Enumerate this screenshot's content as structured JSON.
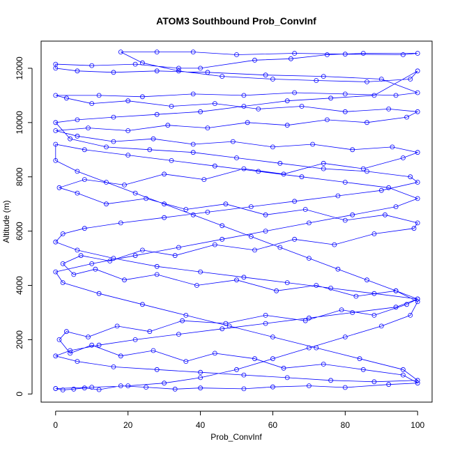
{
  "chart_data": {
    "type": "scatter",
    "title": "ATOM3 Southbound Prob_ConvInf",
    "xlabel": "Prob_ConvInf",
    "ylabel": "Altitude (m)",
    "xlim": [
      -4,
      104
    ],
    "ylim": [
      -300,
      13000
    ],
    "x_ticks": [
      0,
      20,
      40,
      60,
      80,
      100
    ],
    "y_ticks": [
      0,
      2000,
      4000,
      6000,
      8000,
      10000,
      12000
    ],
    "grid": false,
    "legend": "none",
    "series": [
      {
        "color": "#0000ff",
        "marker": "open-circle",
        "connected": true,
        "points": [
          [
            0,
            200
          ],
          [
            2,
            150
          ],
          [
            5,
            180
          ],
          [
            8,
            220
          ],
          [
            12,
            160
          ],
          [
            18,
            300
          ],
          [
            25,
            250
          ],
          [
            33,
            180
          ],
          [
            40,
            220
          ],
          [
            52,
            190
          ],
          [
            60,
            260
          ],
          [
            70,
            300
          ],
          [
            80,
            240
          ],
          [
            92,
            350
          ],
          [
            100,
            400
          ],
          [
            96,
            700
          ],
          [
            85,
            900
          ],
          [
            74,
            1100
          ],
          [
            63,
            950
          ],
          [
            55,
            1300
          ],
          [
            44,
            1500
          ],
          [
            36,
            1200
          ],
          [
            27,
            1600
          ],
          [
            18,
            1400
          ],
          [
            10,
            1800
          ],
          [
            4,
            1500
          ],
          [
            1,
            2000
          ],
          [
            3,
            2300
          ],
          [
            9,
            2100
          ],
          [
            17,
            2500
          ],
          [
            26,
            2300
          ],
          [
            35,
            2700
          ],
          [
            47,
            2600
          ],
          [
            58,
            2900
          ],
          [
            69,
            2700
          ],
          [
            79,
            3100
          ],
          [
            88,
            2900
          ],
          [
            97,
            3300
          ],
          [
            100,
            3500
          ],
          [
            94,
            3800
          ],
          [
            83,
            3600
          ],
          [
            72,
            4000
          ],
          [
            61,
            3800
          ],
          [
            50,
            4200
          ],
          [
            39,
            4000
          ],
          [
            28,
            4400
          ],
          [
            19,
            4200
          ],
          [
            11,
            4600
          ],
          [
            5,
            4400
          ],
          [
            2,
            4800
          ],
          [
            7,
            5100
          ],
          [
            15,
            4900
          ],
          [
            24,
            5300
          ],
          [
            33,
            5100
          ],
          [
            44,
            5500
          ],
          [
            55,
            5300
          ],
          [
            66,
            5700
          ],
          [
            77,
            5500
          ],
          [
            88,
            5900
          ],
          [
            99,
            6100
          ],
          [
            100,
            6300
          ],
          [
            91,
            6600
          ],
          [
            80,
            6400
          ],
          [
            69,
            6800
          ],
          [
            58,
            6600
          ],
          [
            47,
            7000
          ],
          [
            36,
            6800
          ],
          [
            25,
            7200
          ],
          [
            14,
            7000
          ],
          [
            6,
            7400
          ],
          [
            1,
            7600
          ],
          [
            8,
            7900
          ],
          [
            19,
            7700
          ],
          [
            30,
            8100
          ],
          [
            41,
            7900
          ],
          [
            52,
            8300
          ],
          [
            63,
            8100
          ],
          [
            74,
            8500
          ],
          [
            85,
            8300
          ],
          [
            96,
            8700
          ],
          [
            100,
            8900
          ],
          [
            93,
            9100
          ],
          [
            82,
            9000
          ],
          [
            71,
            9200
          ],
          [
            60,
            9100
          ],
          [
            49,
            9300
          ],
          [
            38,
            9200
          ],
          [
            27,
            9400
          ],
          [
            16,
            9300
          ],
          [
            6,
            9500
          ],
          [
            0,
            9700
          ],
          [
            9,
            9800
          ],
          [
            20,
            9700
          ],
          [
            31,
            9900
          ],
          [
            42,
            9800
          ],
          [
            53,
            10000
          ],
          [
            64,
            9900
          ],
          [
            75,
            10100
          ],
          [
            86,
            10000
          ],
          [
            97,
            10200
          ],
          [
            100,
            10400
          ],
          [
            92,
            10500
          ],
          [
            80,
            10400
          ],
          [
            68,
            10600
          ],
          [
            56,
            10500
          ],
          [
            44,
            10700
          ],
          [
            32,
            10600
          ],
          [
            20,
            10800
          ],
          [
            10,
            10700
          ],
          [
            3,
            10900
          ],
          [
            0,
            11000
          ],
          [
            12,
            11000
          ],
          [
            24,
            10950
          ],
          [
            38,
            11050
          ],
          [
            52,
            11000
          ],
          [
            66,
            11100
          ],
          [
            80,
            11050
          ],
          [
            94,
            11000
          ],
          [
            100,
            11100
          ],
          [
            90,
            11600
          ],
          [
            74,
            11700
          ],
          [
            58,
            11750
          ],
          [
            42,
            11850
          ],
          [
            28,
            11900
          ],
          [
            16,
            11850
          ],
          [
            6,
            11900
          ],
          [
            0,
            12000
          ],
          [
            0,
            12150
          ],
          [
            10,
            12100
          ],
          [
            22,
            12150
          ],
          [
            34,
            12000
          ],
          [
            40,
            12000
          ],
          [
            55,
            12300
          ],
          [
            65,
            12350
          ],
          [
            75,
            12500
          ],
          [
            85,
            12550
          ],
          [
            100,
            12550
          ],
          [
            96,
            12500
          ],
          [
            80,
            12520
          ],
          [
            66,
            12550
          ],
          [
            50,
            12500
          ],
          [
            38,
            12600
          ],
          [
            28,
            12600
          ],
          [
            18,
            12600
          ],
          [
            24,
            12200
          ],
          [
            34,
            11900
          ],
          [
            46,
            11700
          ],
          [
            60,
            11600
          ],
          [
            72,
            11550
          ],
          [
            86,
            11500
          ],
          [
            98,
            11600
          ],
          [
            100,
            11900
          ],
          [
            88,
            11000
          ],
          [
            76,
            10900
          ],
          [
            64,
            10800
          ],
          [
            52,
            10600
          ],
          [
            40,
            10400
          ],
          [
            28,
            10300
          ],
          [
            16,
            10200
          ],
          [
            6,
            10100
          ],
          [
            0,
            10000
          ],
          [
            4,
            9400
          ],
          [
            14,
            9100
          ],
          [
            26,
            9000
          ],
          [
            38,
            8900
          ],
          [
            50,
            8700
          ],
          [
            62,
            8500
          ],
          [
            74,
            8300
          ],
          [
            86,
            8200
          ],
          [
            98,
            8000
          ],
          [
            100,
            7800
          ],
          [
            90,
            7500
          ],
          [
            78,
            7300
          ],
          [
            66,
            7100
          ],
          [
            54,
            6900
          ],
          [
            42,
            6700
          ],
          [
            30,
            6500
          ],
          [
            18,
            6300
          ],
          [
            8,
            6100
          ],
          [
            2,
            5900
          ],
          [
            0,
            5600
          ],
          [
            6,
            5300
          ],
          [
            16,
            5000
          ],
          [
            28,
            4700
          ],
          [
            40,
            4500
          ],
          [
            52,
            4300
          ],
          [
            64,
            4100
          ],
          [
            76,
            3900
          ],
          [
            88,
            3700
          ],
          [
            100,
            3500
          ],
          [
            94,
            3200
          ],
          [
            82,
            3000
          ],
          [
            70,
            2800
          ],
          [
            58,
            2600
          ],
          [
            46,
            2400
          ],
          [
            34,
            2200
          ],
          [
            22,
            2000
          ],
          [
            12,
            1800
          ],
          [
            4,
            1600
          ],
          [
            0,
            1400
          ],
          [
            6,
            1200
          ],
          [
            16,
            1000
          ],
          [
            28,
            900
          ],
          [
            40,
            800
          ],
          [
            52,
            700
          ],
          [
            64,
            600
          ],
          [
            76,
            500
          ],
          [
            88,
            450
          ],
          [
            100,
            500
          ],
          [
            96,
            900
          ],
          [
            84,
            1300
          ],
          [
            72,
            1700
          ],
          [
            60,
            2100
          ],
          [
            48,
            2500
          ],
          [
            36,
            2900
          ],
          [
            24,
            3300
          ],
          [
            12,
            3700
          ],
          [
            2,
            4100
          ],
          [
            0,
            4500
          ],
          [
            10,
            4800
          ],
          [
            22,
            5100
          ],
          [
            34,
            5400
          ],
          [
            46,
            5700
          ],
          [
            58,
            6000
          ],
          [
            70,
            6300
          ],
          [
            82,
            6600
          ],
          [
            94,
            6900
          ],
          [
            100,
            7200
          ],
          [
            92,
            7600
          ],
          [
            80,
            7800
          ],
          [
            68,
            8000
          ],
          [
            56,
            8200
          ],
          [
            44,
            8400
          ],
          [
            32,
            8600
          ],
          [
            20,
            8800
          ],
          [
            8,
            9000
          ],
          [
            0,
            9200
          ],
          [
            0,
            8600
          ],
          [
            6,
            8200
          ],
          [
            14,
            7800
          ],
          [
            22,
            7400
          ],
          [
            30,
            7000
          ],
          [
            38,
            6600
          ],
          [
            46,
            6200
          ],
          [
            54,
            5800
          ],
          [
            62,
            5400
          ],
          [
            70,
            5000
          ],
          [
            78,
            4600
          ],
          [
            86,
            4200
          ],
          [
            94,
            3800
          ],
          [
            100,
            3400
          ],
          [
            98,
            2900
          ],
          [
            90,
            2500
          ],
          [
            80,
            2100
          ],
          [
            70,
            1700
          ],
          [
            60,
            1300
          ],
          [
            50,
            900
          ],
          [
            40,
            600
          ],
          [
            30,
            400
          ],
          [
            20,
            300
          ],
          [
            10,
            250
          ],
          [
            0,
            200
          ]
        ]
      }
    ]
  }
}
